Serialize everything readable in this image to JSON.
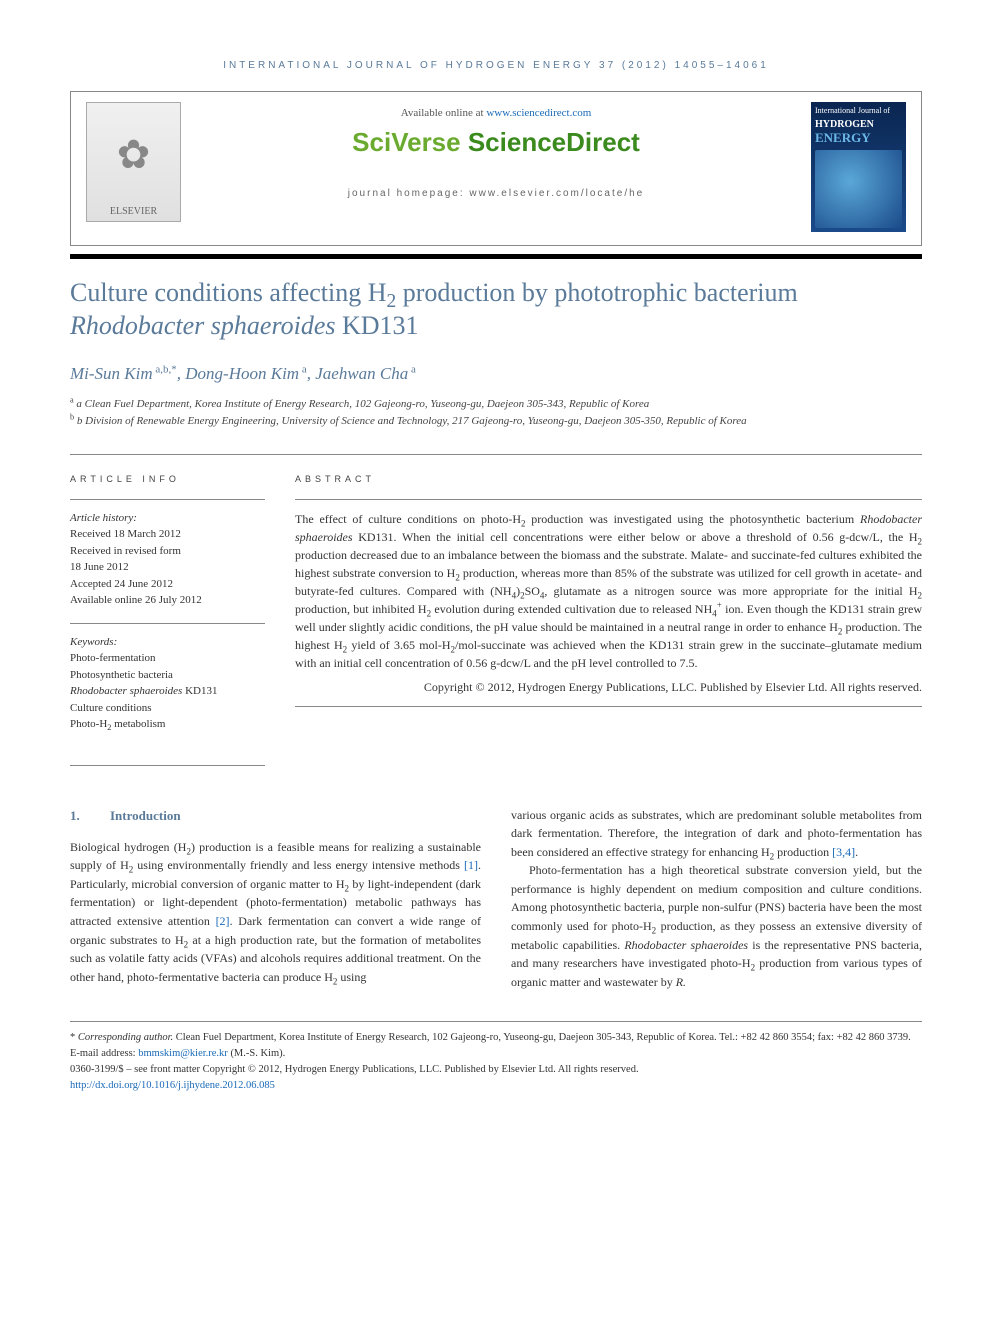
{
  "journal_header": "INTERNATIONAL JOURNAL OF HYDROGEN ENERGY 37 (2012) 14055–14061",
  "header": {
    "available_prefix": "Available online at ",
    "available_url": "www.sciencedirect.com",
    "brand_left": "SciVerse ",
    "brand_right": "ScienceDirect",
    "homepage_prefix": "journal homepage: ",
    "homepage_url": "www.elsevier.com/locate/he",
    "elsevier_label": "ELSEVIER",
    "cover_line1": "International Journal of",
    "cover_line2": "HYDROGEN",
    "cover_line3": "ENERGY"
  },
  "title_html": "Culture conditions affecting H<sub>2</sub> production by phototrophic bacterium <em>Rhodobacter sphaeroides</em> KD131",
  "authors_html": "Mi-Sun Kim<sup> a,b,*</sup>, Dong-Hoon Kim<sup> a</sup>, Jaehwan Cha<sup> a</sup>",
  "affiliations": [
    "a Clean Fuel Department, Korea Institute of Energy Research, 102 Gajeong-ro, Yuseong-gu, Daejeon 305-343, Republic of Korea",
    "b Division of Renewable Energy Engineering, University of Science and Technology, 217 Gajeong-ro, Yuseong-gu, Daejeon 305-350, Republic of Korea"
  ],
  "labels": {
    "article_info": "ARTICLE INFO",
    "abstract": "ABSTRACT",
    "history": "Article history:",
    "keywords": "Keywords:"
  },
  "history": [
    "Received 18 March 2012",
    "Received in revised form",
    "18 June 2012",
    "Accepted 24 June 2012",
    "Available online 26 July 2012"
  ],
  "keywords": [
    "Photo-fermentation",
    "Photosynthetic bacteria",
    "Rhodobacter sphaeroides KD131",
    "Culture conditions",
    "Photo-H2 metabolism"
  ],
  "abstract_html": "The effect of culture conditions on photo-H<sub>2</sub> production was investigated using the photosynthetic bacterium <em>Rhodobacter sphaeroides</em> KD131. When the initial cell concentrations were either below or above a threshold of 0.56 g-dcw/L, the H<sub>2</sub> production decreased due to an imbalance between the biomass and the substrate. Malate- and succinate-fed cultures exhibited the highest substrate conversion to H<sub>2</sub> production, whereas more than 85% of the substrate was utilized for cell growth in acetate- and butyrate-fed cultures. Compared with (NH<sub>4</sub>)<sub>2</sub>SO<sub>4</sub>, glutamate as a nitrogen source was more appropriate for the initial H<sub>2</sub> production, but inhibited H<sub>2</sub> evolution during extended cultivation due to released NH<sub>4</sub><sup>+</sup> ion. Even though the KD131 strain grew well under slightly acidic conditions, the pH value should be maintained in a neutral range in order to enhance H<sub>2</sub> production. The highest H<sub>2</sub> yield of 3.65 mol-H<sub>2</sub>/mol-succinate was achieved when the KD131 strain grew in the succinate–glutamate medium with an initial cell concentration of 0.56 g-dcw/L and the pH level controlled to 7.5.",
  "abstract_copyright": "Copyright © 2012, Hydrogen Energy Publications, LLC. Published by Elsevier Ltd. All rights reserved.",
  "intro": {
    "num": "1.",
    "label": "Introduction",
    "col1_html": "Biological hydrogen (H<sub>2</sub>) production is a feasible means for realizing a sustainable supply of H<sub>2</sub> using environmentally friendly and less energy intensive methods <a class=\"ref\" href=\"#\">[1]</a>. Particularly, microbial conversion of organic matter to H<sub>2</sub> by light-independent (dark fermentation) or light-dependent (photo-fermentation) metabolic pathways has attracted extensive attention <a class=\"ref\" href=\"#\">[2]</a>. Dark fermentation can convert a wide range of organic substrates to H<sub>2</sub> at a high production rate, but the formation of metabolites such as volatile fatty acids (VFAs) and alcohols requires additional treatment. On the other hand, photo-fermentative bacteria can produce H<sub>2</sub> using",
    "col2_p1_html": "various organic acids as substrates, which are predominant soluble metabolites from dark fermentation. Therefore, the integration of dark and photo-fermentation has been considered an effective strategy for enhancing H<sub>2</sub> production <a class=\"ref\" href=\"#\">[3,4]</a>.",
    "col2_p2_html": "Photo-fermentation has a high theoretical substrate conversion yield, but the performance is highly dependent on medium composition and culture conditions. Among photosynthetic bacteria, purple non-sulfur (PNS) bacteria have been the most commonly used for photo-H<sub>2</sub> production, as they possess an extensive diversity of metabolic capabilities. <em>Rhodobacter sphaeroides</em> is the representative PNS bacteria, and many researchers have investigated photo-H<sub>2</sub> production from various types of organic matter and wastewater by <em>R.</em>"
  },
  "footnote": {
    "corr_html": "* <em>Corresponding author.</em> Clean Fuel Department, Korea Institute of Energy Research, 102 Gajeong-ro, Yuseong-gu, Daejeon 305-343, Republic of Korea. Tel.: +82 42 860 3554; fax: +82 42 860 3739.",
    "email_label": "E-mail address: ",
    "email": "bmmskim@kier.re.kr",
    "email_suffix": " (M.-S. Kim).",
    "issn_line": "0360-3199/$ – see front matter Copyright © 2012, Hydrogen Energy Publications, LLC. Published by Elsevier Ltd. All rights reserved.",
    "doi": "http://dx.doi.org/10.1016/j.ijhydene.2012.06.085"
  },
  "colors": {
    "heading": "#5a7a9a",
    "link": "#1a6ab8",
    "brand_green": "#6aaa2e",
    "brand_green_dark": "#3a8a1e"
  }
}
